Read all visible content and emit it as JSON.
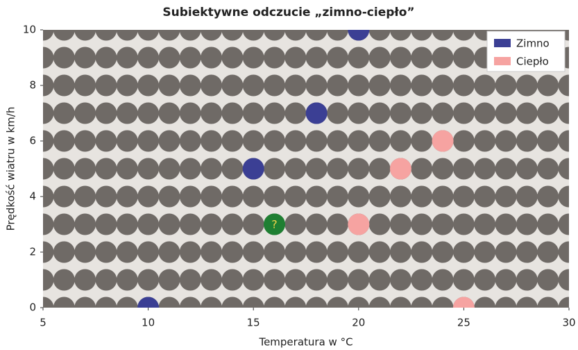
{
  "chart_data": {
    "type": "scatter",
    "title": "Subiektywne odczucie „zimno-ciepło”",
    "x_label": "Temperatura w °C",
    "y_label": "Prędkość wiatru w km/h",
    "xlim": [
      5,
      30
    ],
    "xticks": [
      5,
      10,
      15,
      20,
      25,
      30
    ],
    "ylim": [
      0,
      10
    ],
    "yticks": [
      0,
      2,
      4,
      6,
      8,
      10
    ],
    "background_dot_color": "#6f6a66",
    "series": [
      {
        "name": "Zimno",
        "color": "#3b3f94",
        "x": [
          20,
          18,
          15,
          10
        ],
        "y": [
          10,
          7,
          5,
          0
        ]
      },
      {
        "name": "Ciepło",
        "color": "#f6a3a1",
        "x": [
          24,
          22,
          20,
          25
        ],
        "y": [
          6,
          5,
          3,
          0
        ]
      }
    ],
    "annotations": [
      {
        "text": "?",
        "x": 16,
        "y": 3,
        "color": "#1f7f32"
      }
    ],
    "legend": "upper right"
  }
}
